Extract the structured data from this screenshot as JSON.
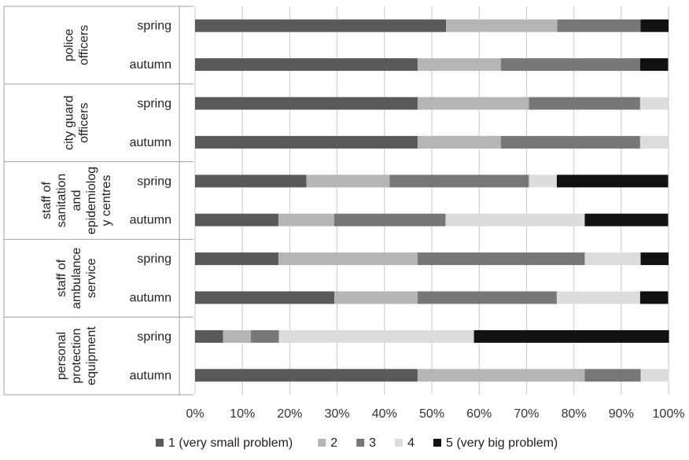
{
  "chart_data": {
    "type": "bar",
    "orientation": "horizontal",
    "stacked": "percent",
    "groups": [
      {
        "label_lines": [
          "police",
          "officers"
        ],
        "categories": [
          "spring",
          "autumn"
        ]
      },
      {
        "label_lines": [
          "city guard",
          "officers"
        ],
        "categories": [
          "spring",
          "autumn"
        ]
      },
      {
        "label_lines": [
          "staff of",
          "sanitation",
          "and",
          "epidemiolog",
          "y centres"
        ],
        "categories": [
          "spring",
          "autumn"
        ]
      },
      {
        "label_lines": [
          "staff of",
          "ambulance",
          "service"
        ],
        "categories": [
          "spring",
          "autumn"
        ]
      },
      {
        "label_lines": [
          "personal",
          "protection",
          "equipment"
        ],
        "categories": [
          "spring",
          "autumn"
        ]
      }
    ],
    "series": [
      {
        "name": "1 (very small problem)",
        "color": "#595959",
        "values": [
          [
            53,
            47
          ],
          [
            47,
            47
          ],
          [
            23.5,
            17.6
          ],
          [
            17.6,
            29.4
          ],
          [
            5.9,
            47
          ]
        ]
      },
      {
        "name": "2",
        "color": "#b5b5b5",
        "values": [
          [
            23.5,
            17.6
          ],
          [
            23.5,
            17.6
          ],
          [
            17.6,
            11.8
          ],
          [
            29.4,
            17.6
          ],
          [
            5.9,
            35.3
          ]
        ]
      },
      {
        "name": "3",
        "color": "#777777",
        "values": [
          [
            17.6,
            29.4
          ],
          [
            23.5,
            29.4
          ],
          [
            29.4,
            23.5
          ],
          [
            35.3,
            29.4
          ],
          [
            5.9,
            11.8
          ]
        ]
      },
      {
        "name": "4",
        "color": "#dcdcdc",
        "values": [
          [
            0,
            0
          ],
          [
            5.9,
            5.9
          ],
          [
            5.9,
            29.4
          ],
          [
            11.8,
            17.6
          ],
          [
            41.2,
            5.9
          ]
        ]
      },
      {
        "name": "5 (very big problem)",
        "color": "#111111",
        "values": [
          [
            5.9,
            5.9
          ],
          [
            0,
            0
          ],
          [
            23.5,
            17.6
          ],
          [
            5.9,
            5.9
          ],
          [
            41.2,
            0
          ]
        ]
      }
    ],
    "xlim": [
      0,
      100
    ],
    "xticks": [
      "0%",
      "10%",
      "20%",
      "30%",
      "40%",
      "50%",
      "60%",
      "70%",
      "80%",
      "90%",
      "100%"
    ],
    "grid": true,
    "legend_position": "bottom"
  }
}
